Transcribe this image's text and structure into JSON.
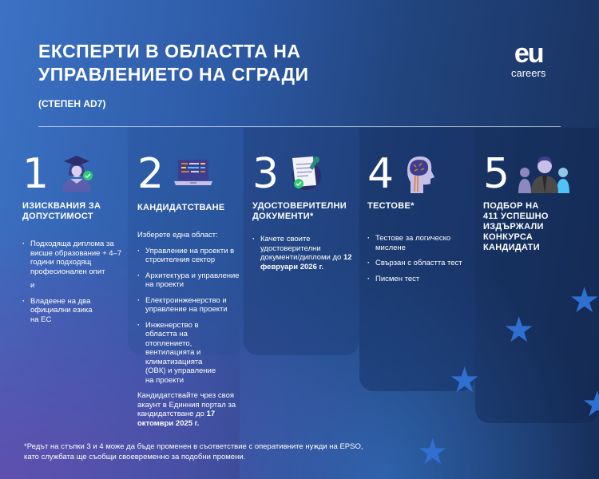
{
  "header": {
    "title_line1": "ЕКСПЕРТИ В ОБЛАСТТА НА",
    "title_line2": "УПРАВЛЕНИЕТО НА СГРАДИ",
    "subtitle": "(СТЕПЕН AD7)"
  },
  "logo": {
    "eu": "eu",
    "careers": "careers"
  },
  "steps": [
    {
      "number": "1",
      "icon": "graduate-icon",
      "title": "ИЗИСКВАНИЯ ЗА ДОПУСТИМОСТ",
      "items": [
        "Подходяща диплома за висше образование + 4–7 години подходящ професионален опит",
        "Владеене на два официални езика на ЕС"
      ],
      "connector": "и"
    },
    {
      "number": "2",
      "icon": "laptop-icon",
      "title": "КАНДИДАТСТВАНЕ",
      "intro": "Изберете една област:",
      "items": [
        "Управление на проекти в строителния сектор",
        "Архитектура и управление на проекти",
        "Електроинженерство и управление на проекти",
        "Инженерство в областта на отоплението, вентилацията и климатизацията (ОВК) и управление на проекти"
      ],
      "note": "Кандидатствайте чрез своя акаунт в Единния портал за кандидатстване",
      "note_prefix": "до",
      "note_date": "17 октомври 2025 г."
    },
    {
      "number": "3",
      "icon": "document-icon",
      "title": "УДОСТОВЕРИТЕЛНИ ДОКУМЕНТИ*",
      "item": "Качете своите удостоверителни документи/дипломи до",
      "item_date": "12 февруари 2026 г."
    },
    {
      "number": "4",
      "icon": "brain-icon",
      "title": "ТЕСТОВЕ*",
      "items": [
        "Тестове за логическо мислене",
        "Свързан с областта тест",
        "Писмен тест"
      ]
    },
    {
      "number": "5",
      "icon": "people-icon",
      "title": "ПОДБОР НА 411 УСПЕШНО ИЗДЪРЖАЛИ КОНКУРСА КАНДИДАТИ"
    }
  ],
  "footnote": {
    "line1": "*Редът на стъпки 3 и 4 може да бъде променен в съответствие с оперативните нужди на EPSO,",
    "line2": "като службата ще съобщи своевременно за подобни промени."
  },
  "colors": {
    "bg_light": "#3c72c4",
    "bg_dark": "#172f5a",
    "star": "#2f6fd0",
    "check": "#2ecc71"
  }
}
